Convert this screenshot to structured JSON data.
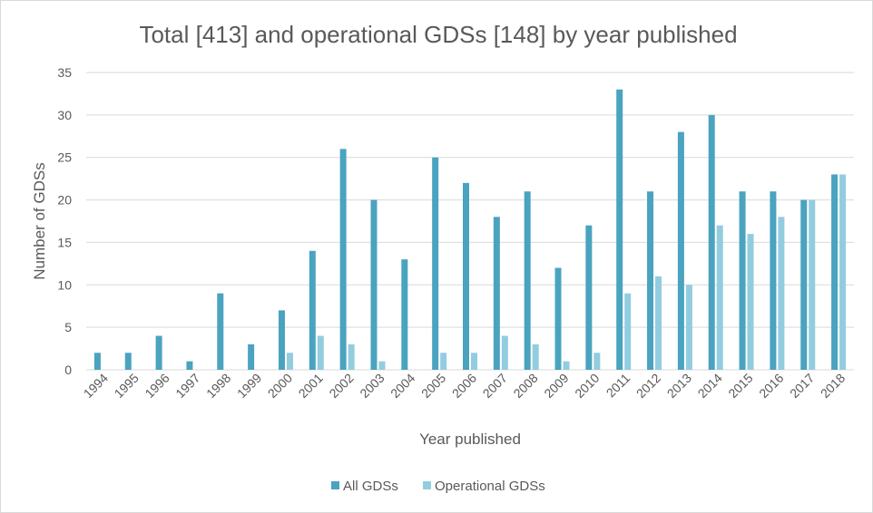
{
  "chart_data": {
    "type": "bar",
    "title": "Total [413] and operational GDSs [148] by year published",
    "xlabel": "Year published",
    "ylabel": "Number of GDSs",
    "ylim": [
      0,
      35
    ],
    "yticks": [
      0,
      5,
      10,
      15,
      20,
      25,
      30,
      35
    ],
    "grid": true,
    "legend_position": "bottom",
    "categories": [
      "1994",
      "1995",
      "1996",
      "1997",
      "1998",
      "1999",
      "2000",
      "2001",
      "2002",
      "2003",
      "2004",
      "2005",
      "2006",
      "2007",
      "2008",
      "2009",
      "2010",
      "2011",
      "2012",
      "2013",
      "2014",
      "2015",
      "2016",
      "2017",
      "2018"
    ],
    "series": [
      {
        "name": "All GDSs",
        "color": "#4aa3bf",
        "values": [
          2,
          2,
          4,
          1,
          9,
          3,
          7,
          14,
          26,
          20,
          13,
          25,
          22,
          18,
          21,
          12,
          17,
          33,
          21,
          28,
          30,
          21,
          21,
          20,
          23
        ]
      },
      {
        "name": "Operational GDSs",
        "color": "#92cddf",
        "values": [
          0,
          0,
          0,
          0,
          0,
          0,
          2,
          4,
          3,
          1,
          0,
          2,
          2,
          4,
          3,
          1,
          2,
          9,
          11,
          10,
          17,
          16,
          18,
          20,
          23
        ]
      }
    ]
  }
}
